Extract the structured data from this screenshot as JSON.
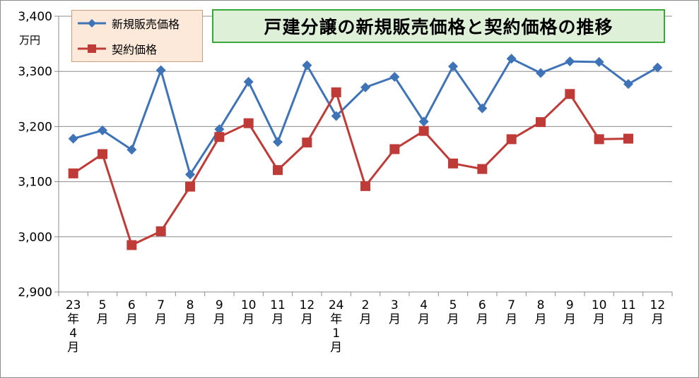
{
  "chart_data": {
    "type": "line",
    "title": "戸建分譲の新規販売価格と契約価格の推移",
    "ylabel": "万円",
    "ylim": [
      2900,
      3400
    ],
    "yticks": [
      "2,900",
      "3,000",
      "3,100",
      "3,200",
      "3,300",
      "3,400"
    ],
    "ytick_values": [
      2900,
      3000,
      3100,
      3200,
      3300,
      3400
    ],
    "categories": [
      "23年4月",
      "5月",
      "6月",
      "7月",
      "8月",
      "9月",
      "10月",
      "11月",
      "12月",
      "24年1月",
      "2月",
      "3月",
      "4月",
      "5月",
      "6月",
      "7月",
      "8月",
      "9月",
      "10月",
      "11月",
      "12月"
    ],
    "grid": true,
    "legend_position": "top-left",
    "series": [
      {
        "name": "新規販売価格",
        "color": "#3f73b8",
        "marker": "diamond",
        "values": [
          3178,
          3193,
          3158,
          3302,
          3113,
          3195,
          3281,
          3172,
          3311,
          3219,
          3271,
          3290,
          3209,
          3309,
          3233,
          3323,
          3297,
          3318,
          3317,
          3277,
          3307
        ]
      },
      {
        "name": "契約価格",
        "color": "#bf3b37",
        "marker": "square",
        "values": [
          3115,
          3150,
          2985,
          3010,
          3091,
          3181,
          3206,
          3121,
          3171,
          3262,
          3092,
          3159,
          3192,
          3133,
          3123,
          3177,
          3208,
          3259,
          3177,
          3178,
          null
        ]
      }
    ]
  }
}
